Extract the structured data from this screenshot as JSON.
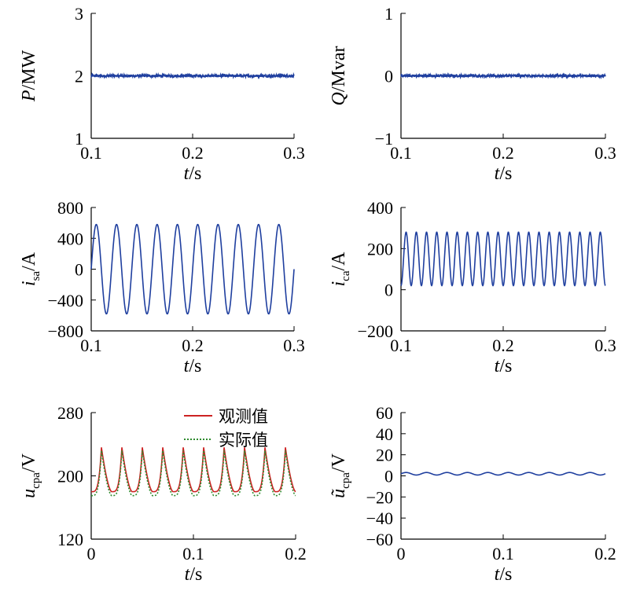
{
  "chart_data": [
    {
      "type": "line",
      "xlabel": {
        "main": "t",
        "unit": "/s"
      },
      "ylabel": {
        "main": "P",
        "sub": "",
        "unit": "/MW"
      },
      "xlim": [
        0.1,
        0.3
      ],
      "ylim": [
        1,
        3
      ],
      "xticks": [
        0.1,
        0.2,
        0.3
      ],
      "xtick_labels": [
        "0.1",
        "0.2",
        "0.3"
      ],
      "yticks": [
        1,
        2,
        3
      ],
      "ytick_labels": [
        "1",
        "2",
        "3"
      ],
      "grid": false,
      "series": [
        {
          "kind": "noisy-constant",
          "level": 2,
          "noise": 0.02,
          "color": "#1f3f9f"
        }
      ]
    },
    {
      "type": "line",
      "xlabel": {
        "main": "t",
        "unit": "/s"
      },
      "ylabel": {
        "main": "Q",
        "sub": "",
        "unit": "/Mvar"
      },
      "xlim": [
        0.1,
        0.3
      ],
      "ylim": [
        -1,
        1
      ],
      "xticks": [
        0.1,
        0.2,
        0.3
      ],
      "xtick_labels": [
        "0.1",
        "0.2",
        "0.3"
      ],
      "yticks": [
        -1,
        0,
        1
      ],
      "ytick_labels": [
        "−1",
        "0",
        "1"
      ],
      "grid": false,
      "series": [
        {
          "kind": "noisy-constant",
          "level": 0,
          "noise": 0.02,
          "color": "#1f3f9f"
        }
      ]
    },
    {
      "type": "line",
      "xlabel": {
        "main": "t",
        "unit": "/s"
      },
      "ylabel": {
        "main": "i",
        "sub": "sa",
        "unit": "/A"
      },
      "xlim": [
        0.1,
        0.3
      ],
      "ylim": [
        -800,
        800
      ],
      "xticks": [
        0.1,
        0.2,
        0.3
      ],
      "xtick_labels": [
        "0.1",
        "0.2",
        "0.3"
      ],
      "yticks": [
        -800,
        -400,
        0,
        400,
        800
      ],
      "ytick_labels": [
        "−800",
        "−400",
        "0",
        "400",
        "800"
      ],
      "grid": false,
      "series": [
        {
          "kind": "sine",
          "offset": 0,
          "amplitude": 580,
          "frequency_hz": 50,
          "phase_deg": 0,
          "color": "#1f3f9f"
        }
      ]
    },
    {
      "type": "line",
      "xlabel": {
        "main": "t",
        "unit": "/s"
      },
      "ylabel": {
        "main": "i",
        "sub": "ca",
        "unit": "/A"
      },
      "xlim": [
        0.1,
        0.3
      ],
      "ylim": [
        -200,
        400
      ],
      "xticks": [
        0.1,
        0.2,
        0.3
      ],
      "xtick_labels": [
        "0.1",
        "0.2",
        "0.3"
      ],
      "yticks": [
        -200,
        0,
        200,
        400
      ],
      "ytick_labels": [
        "−200",
        "0",
        "200",
        "400"
      ],
      "grid": false,
      "series": [
        {
          "kind": "sine",
          "offset": 150,
          "amplitude": 130,
          "frequency_hz": 100,
          "phase_deg": -90,
          "color": "#1f3f9f"
        }
      ]
    },
    {
      "type": "line",
      "xlabel": {
        "main": "t",
        "unit": "/s"
      },
      "ylabel": {
        "main": "u",
        "sub": "cpa",
        "unit": "/V"
      },
      "xlim": [
        0,
        0.2
      ],
      "ylim": [
        120,
        280
      ],
      "xticks": [
        0,
        0.1,
        0.2
      ],
      "xtick_labels": [
        "0",
        "0.1",
        "0.2"
      ],
      "yticks": [
        120,
        200,
        280
      ],
      "ytick_labels": [
        "120",
        "200",
        "280"
      ],
      "grid": false,
      "legend": {
        "position": "top-right",
        "entries": [
          "观测值",
          "实际值"
        ]
      },
      "series": [
        {
          "name": "观测值",
          "kind": "ripple",
          "base": 190,
          "peak": 236,
          "trough": 180,
          "period_s": 0.02,
          "color": "#cc2222",
          "dash": "solid"
        },
        {
          "name": "实际值",
          "kind": "ripple",
          "base": 186,
          "peak": 232,
          "trough": 175,
          "period_s": 0.02,
          "color": "#2e8b2e",
          "dash": "dotted"
        }
      ]
    },
    {
      "type": "line",
      "xlabel": {
        "main": "t",
        "unit": "/s"
      },
      "ylabel": {
        "main": "ũ",
        "sub": "cpa",
        "unit": "/V"
      },
      "xlim": [
        0,
        0.2
      ],
      "ylim": [
        -60,
        60
      ],
      "xticks": [
        0,
        0.1,
        0.2
      ],
      "xtick_labels": [
        "0",
        "0.1",
        "0.2"
      ],
      "yticks": [
        -60,
        -40,
        -20,
        0,
        20,
        40,
        60
      ],
      "ytick_labels": [
        "−60",
        "−40",
        "−20",
        "0",
        "20",
        "40",
        "60"
      ],
      "grid": false,
      "series": [
        {
          "kind": "sine",
          "offset": 2,
          "amplitude": 1.2,
          "frequency_hz": 50,
          "phase_deg": 0,
          "color": "#1f3f9f"
        }
      ]
    }
  ]
}
